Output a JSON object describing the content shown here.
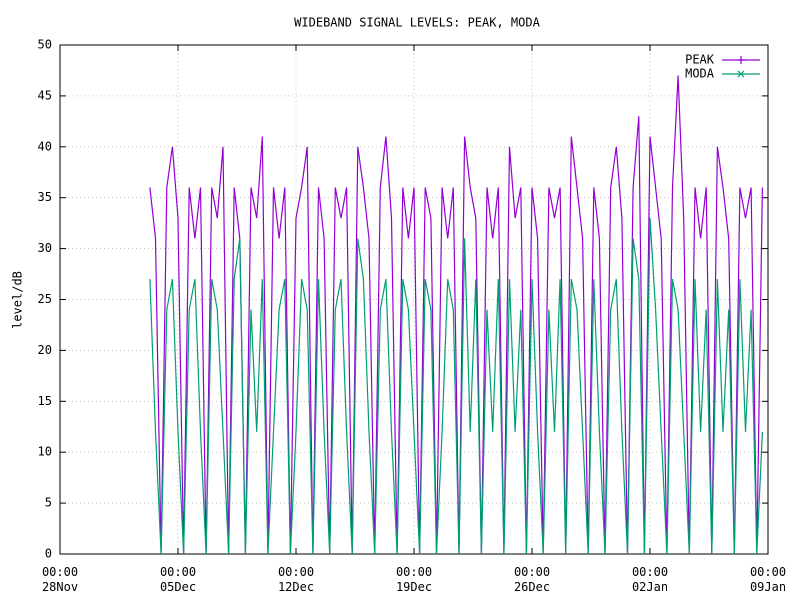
{
  "chart_data": {
    "type": "line",
    "title": "WIDEBAND SIGNAL LEVELS: PEAK, MODA",
    "y_label": "level/dB",
    "xlim": [
      "28Nov 00:00",
      "09Jan 00:00"
    ],
    "xticks": [
      {
        "value": "28Nov 00:00",
        "label": "00:00 28Nov"
      },
      {
        "value": "05Dec 00:00",
        "label": "00:00 05Dec"
      },
      {
        "value": "12Dec 00:00",
        "label": "00:00 12Dec"
      },
      {
        "value": "19Dec 00:00",
        "label": "00:00 19Dec"
      },
      {
        "value": "26Dec 00:00",
        "label": "00:00 26Dec"
      },
      {
        "value": "02Jan 00:00",
        "label": "00:00 02Jan"
      },
      {
        "value": "09Jan 00:00",
        "label": "00:00 09Jan"
      }
    ],
    "ylim": [
      0,
      50
    ],
    "yticks": [
      0,
      5,
      10,
      15,
      20,
      25,
      30,
      35,
      40,
      45,
      50
    ],
    "grid": true,
    "legend": "top-right",
    "x": [
      "03Dec 08:00",
      "03Dec 16:00",
      "04Dec 00:00",
      "04Dec 08:00",
      "04Dec 16:00",
      "05Dec 00:00",
      "05Dec 08:00",
      "05Dec 16:00",
      "06Dec 00:00",
      "06Dec 08:00",
      "06Dec 16:00",
      "07Dec 00:00",
      "07Dec 08:00",
      "07Dec 16:00",
      "08Dec 00:00",
      "08Dec 08:00",
      "08Dec 16:00",
      "09Dec 00:00",
      "09Dec 08:00",
      "09Dec 16:00",
      "10Dec 00:00",
      "10Dec 08:00",
      "10Dec 16:00",
      "11Dec 00:00",
      "11Dec 08:00",
      "11Dec 16:00",
      "12Dec 00:00",
      "12Dec 08:00",
      "12Dec 16:00",
      "13Dec 00:00",
      "13Dec 08:00",
      "13Dec 16:00",
      "14Dec 00:00",
      "14Dec 08:00",
      "14Dec 16:00",
      "15Dec 00:00",
      "15Dec 08:00",
      "15Dec 16:00",
      "16Dec 00:00",
      "16Dec 08:00",
      "16Dec 16:00",
      "17Dec 00:00",
      "17Dec 08:00",
      "17Dec 16:00",
      "18Dec 00:00",
      "18Dec 08:00",
      "18Dec 16:00",
      "19Dec 00:00",
      "19Dec 08:00",
      "19Dec 16:00",
      "20Dec 00:00",
      "20Dec 08:00",
      "20Dec 16:00",
      "21Dec 00:00",
      "21Dec 08:00",
      "21Dec 16:00",
      "22Dec 00:00",
      "22Dec 08:00",
      "22Dec 16:00",
      "23Dec 00:00",
      "23Dec 08:00",
      "23Dec 16:00",
      "24Dec 00:00",
      "24Dec 08:00",
      "24Dec 16:00",
      "25Dec 00:00",
      "25Dec 08:00",
      "25Dec 16:00",
      "26Dec 00:00",
      "26Dec 08:00",
      "26Dec 16:00",
      "27Dec 00:00",
      "27Dec 08:00",
      "27Dec 16:00",
      "28Dec 00:00",
      "28Dec 08:00",
      "28Dec 16:00",
      "29Dec 00:00",
      "29Dec 08:00",
      "29Dec 16:00",
      "30Dec 00:00",
      "30Dec 08:00",
      "30Dec 16:00",
      "31Dec 00:00",
      "31Dec 08:00",
      "31Dec 16:00",
      "01Jan 00:00",
      "01Jan 08:00",
      "01Jan 16:00",
      "02Jan 00:00",
      "02Jan 08:00",
      "02Jan 16:00",
      "03Jan 00:00",
      "03Jan 08:00",
      "03Jan 16:00",
      "04Jan 00:00",
      "04Jan 08:00",
      "04Jan 16:00",
      "05Jan 00:00",
      "05Jan 08:00",
      "05Jan 16:00",
      "06Jan 00:00",
      "06Jan 08:00",
      "06Jan 16:00",
      "07Jan 00:00",
      "07Jan 08:00",
      "07Jan 16:00",
      "08Jan 00:00",
      "08Jan 08:00",
      "08Jan 16:00"
    ],
    "series": [
      {
        "name": "PEAK",
        "color": "#9400d3",
        "values": [
          36,
          31,
          0,
          36,
          40,
          33,
          0,
          36,
          31,
          36,
          0,
          36,
          33,
          40,
          0,
          36,
          31,
          0,
          36,
          33,
          41,
          0,
          36,
          31,
          36,
          0,
          33,
          36,
          40,
          0,
          36,
          31,
          0,
          36,
          33,
          36,
          0,
          40,
          36,
          31,
          0,
          36,
          41,
          33,
          0,
          36,
          31,
          36,
          0,
          36,
          33,
          0,
          36,
          31,
          36,
          0,
          41,
          36,
          33,
          0,
          36,
          31,
          36,
          0,
          40,
          33,
          36,
          0,
          36,
          31,
          0,
          36,
          33,
          36,
          0,
          41,
          36,
          31,
          0,
          36,
          31,
          0,
          36,
          40,
          33,
          0,
          36,
          43,
          0,
          41,
          36,
          31,
          0,
          36,
          47,
          33,
          0,
          36,
          31,
          36,
          0,
          40,
          36,
          31,
          0,
          36,
          33,
          36,
          0,
          36
        ]
      },
      {
        "name": "MODA",
        "color": "#009e73",
        "values": [
          27,
          12,
          0,
          24,
          27,
          12,
          0,
          24,
          27,
          12,
          0,
          27,
          24,
          12,
          0,
          27,
          31,
          0,
          24,
          12,
          27,
          0,
          12,
          24,
          27,
          0,
          12,
          27,
          24,
          0,
          27,
          12,
          0,
          24,
          27,
          12,
          0,
          31,
          27,
          12,
          0,
          24,
          27,
          12,
          0,
          27,
          24,
          12,
          0,
          27,
          24,
          0,
          12,
          27,
          24,
          0,
          31,
          12,
          27,
          0,
          24,
          12,
          27,
          0,
          27,
          12,
          24,
          0,
          27,
          12,
          0,
          24,
          12,
          27,
          0,
          27,
          24,
          12,
          0,
          27,
          12,
          0,
          24,
          27,
          12,
          0,
          31,
          27,
          0,
          33,
          24,
          12,
          0,
          27,
          24,
          12,
          0,
          27,
          12,
          24,
          0,
          27,
          12,
          24,
          0,
          27,
          12,
          24,
          0,
          12
        ]
      }
    ]
  }
}
